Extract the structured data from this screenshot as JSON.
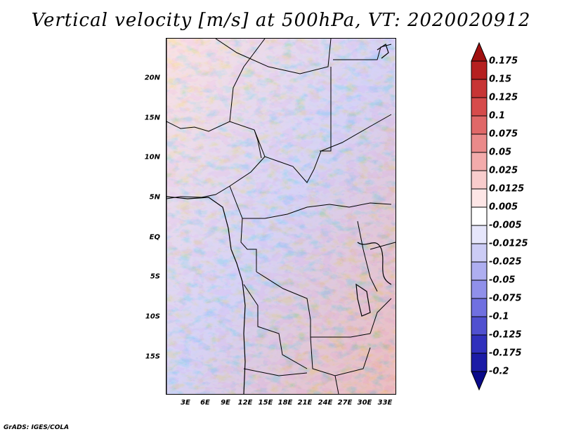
{
  "title": "Vertical velocity [m/s] at 500hPa, VT: 2020020912",
  "credit": "GrADS: IGES/COLA",
  "lat_labels": [
    "20N",
    "15N",
    "10N",
    "5N",
    "EQ",
    "5S",
    "10S",
    "15S"
  ],
  "lon_labels": [
    "3E",
    "6E",
    "9E",
    "12E",
    "15E",
    "18E",
    "21E",
    "24E",
    "27E",
    "30E",
    "33E"
  ],
  "colorbar": {
    "labels": [
      "0.175",
      "0.15",
      "0.125",
      "0.1",
      "0.075",
      "0.05",
      "0.025",
      "0.0125",
      "0.005",
      "-0.005",
      "-0.0125",
      "-0.025",
      "-0.05",
      "-0.075",
      "-0.1",
      "-0.125",
      "-0.175",
      "-0.2"
    ],
    "colors": [
      "#a01010",
      "#b52020",
      "#c73535",
      "#d64b4b",
      "#e06868",
      "#ea8a8a",
      "#f3abab",
      "#f8cccc",
      "#fde6e6",
      "#ffffff",
      "#e6e6fb",
      "#ccccf5",
      "#aeaef0",
      "#9090ea",
      "#7070e0",
      "#5050d0",
      "#3030bc",
      "#1c1ca6",
      "#0a0a8a"
    ]
  }
}
